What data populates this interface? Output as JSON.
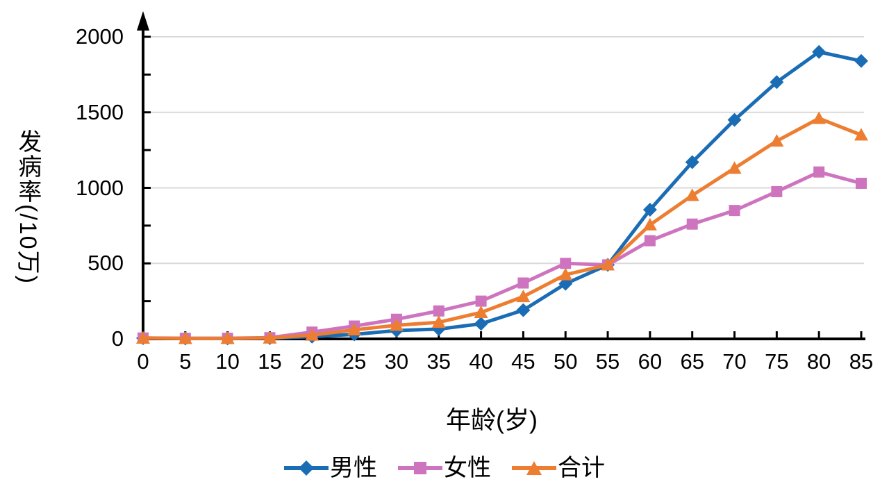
{
  "page": {
    "background": "#ffffff"
  },
  "chart_data": {
    "type": "line",
    "title": "",
    "x_label": "年龄(岁)",
    "y_label": "发病率(/10万)",
    "y_label_cjk": "发病率",
    "y_label_unit": "(/10万)",
    "x": [
      0,
      5,
      10,
      15,
      20,
      25,
      30,
      35,
      40,
      45,
      50,
      55,
      60,
      65,
      70,
      75,
      80,
      85
    ],
    "x_tick_labels": [
      "0",
      "5",
      "10",
      "15",
      "20",
      "25",
      "30",
      "35",
      "40",
      "45",
      "50",
      "55",
      "60",
      "65",
      "70",
      "75",
      "80",
      "85"
    ],
    "y_major_ticks": [
      0,
      500,
      1000,
      1500,
      2000
    ],
    "y_minor_tick_step": 250,
    "ylim": [
      0,
      2000
    ],
    "grid": "horizontal-only",
    "legend_position": "bottom-center",
    "series": [
      {
        "key": "male",
        "name": "男性",
        "marker": "diamond",
        "color": "#1A6CB5",
        "values": [
          5,
          3,
          3,
          5,
          15,
          30,
          55,
          65,
          100,
          190,
          365,
          490,
          855,
          1170,
          1450,
          1700,
          1900,
          1840
        ]
      },
      {
        "key": "female",
        "name": "女性",
        "marker": "square",
        "color": "#CE74BF",
        "values": [
          6,
          4,
          4,
          8,
          45,
          85,
          130,
          185,
          250,
          370,
          500,
          490,
          650,
          760,
          850,
          975,
          1105,
          1030
        ]
      },
      {
        "key": "total",
        "name": "合计",
        "marker": "triangle",
        "color": "#ED7D31",
        "values": [
          5,
          3,
          3,
          6,
          25,
          60,
          90,
          110,
          175,
          280,
          425,
          490,
          755,
          950,
          1130,
          1310,
          1460,
          1350
        ]
      }
    ],
    "colors": {
      "grid": "#D9D9D9",
      "axis": "#000000",
      "text": "#000000"
    }
  }
}
